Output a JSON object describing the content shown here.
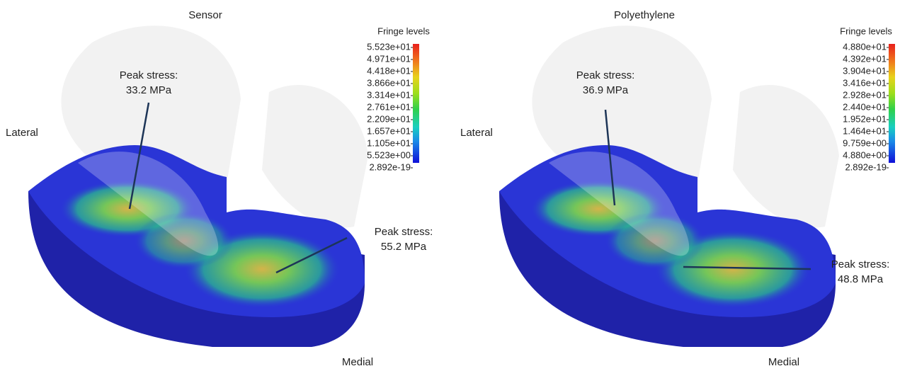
{
  "panels": [
    {
      "title": "Sensor",
      "legend_title": "Fringe levels",
      "levels": [
        "5.523e+01",
        "4.971e+01",
        "4.418e+01",
        "3.866e+01",
        "3.314e+01",
        "2.761e+01",
        "2.209e+01",
        "1.657e+01",
        "1.105e+01",
        "5.523e+00",
        "2.892e-19"
      ],
      "lateral": "Lateral",
      "medial": "Medial",
      "peaks": [
        {
          "label": "Peak stress:",
          "value": "33.2 MPa"
        },
        {
          "label": "Peak stress:",
          "value": "55.2 MPa"
        }
      ]
    },
    {
      "title": "Polyethylene",
      "legend_title": "Fringe levels",
      "levels": [
        "4.880e+01",
        "4.392e+01",
        "3.904e+01",
        "3.416e+01",
        "2.928e+01",
        "2.440e+01",
        "1.952e+01",
        "1.464e+01",
        "9.759e+00",
        "4.880e+00",
        "2.892e-19"
      ],
      "lateral": "Lateral",
      "medial": "Medial",
      "peaks": [
        {
          "label": "Peak stress:",
          "value": "36.9 MPa"
        },
        {
          "label": "Peak stress:",
          "value": "48.8 MPa"
        }
      ]
    }
  ]
}
